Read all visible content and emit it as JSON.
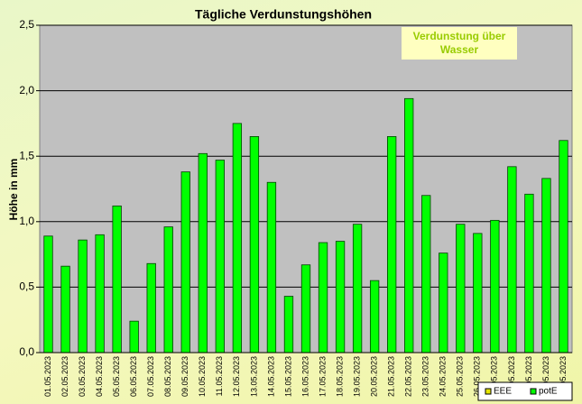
{
  "chart_data": {
    "type": "bar",
    "title": "Tägliche Verdunstungshöhen",
    "y_label": "Höhe in mm",
    "annotation": "Verdunstung über Wasser",
    "categories": [
      "01.05.2023",
      "02.05.2023",
      "03.05.2023",
      "04.05.2023",
      "05.05.2023",
      "06.05.2023",
      "07.05.2023",
      "08.05.2023",
      "09.05.2023",
      "10.05.2023",
      "11.05.2023",
      "12.05.2023",
      "13.05.2023",
      "14.05.2023",
      "15.05.2023",
      "16.05.2023",
      "17.05.2023",
      "18.05.2023",
      "19.05.2023",
      "20.05.2023",
      "21.05.2023",
      "22.05.2023",
      "23.05.2023",
      "24.05.2023",
      "25.05.2023",
      "26.05.2023",
      "27.05.2023",
      "28.05.2023",
      "29.05.2023",
      "30.05.2023",
      "31.05.2023"
    ],
    "series": [
      {
        "name": "EEE",
        "color": "#e6e600",
        "values": [
          null,
          null,
          null,
          null,
          null,
          null,
          null,
          null,
          null,
          null,
          null,
          null,
          null,
          null,
          null,
          null,
          null,
          null,
          null,
          null,
          null,
          null,
          null,
          null,
          null,
          null,
          null,
          null,
          null,
          null,
          null
        ]
      },
      {
        "name": "potE",
        "color": "#00ff00",
        "values": [
          0.89,
          0.66,
          0.86,
          0.9,
          1.12,
          0.24,
          0.68,
          0.96,
          1.38,
          1.52,
          1.47,
          1.75,
          1.65,
          1.3,
          0.43,
          0.67,
          0.84,
          0.85,
          0.98,
          0.55,
          1.65,
          1.94,
          1.2,
          0.76,
          0.98,
          0.91,
          1.01,
          1.42,
          1.21,
          1.33,
          1.62
        ]
      }
    ],
    "ylim": [
      0,
      2.5
    ],
    "yticks": [
      {
        "value": 0,
        "label": "0,0"
      },
      {
        "value": 0.5,
        "label": "0,5"
      },
      {
        "value": 1,
        "label": "1,0"
      },
      {
        "value": 1.5,
        "label": "1,5"
      },
      {
        "value": 2,
        "label": "2,0"
      },
      {
        "value": 2.5,
        "label": "2,5"
      }
    ],
    "grid": true,
    "legend": "bottom-right"
  }
}
